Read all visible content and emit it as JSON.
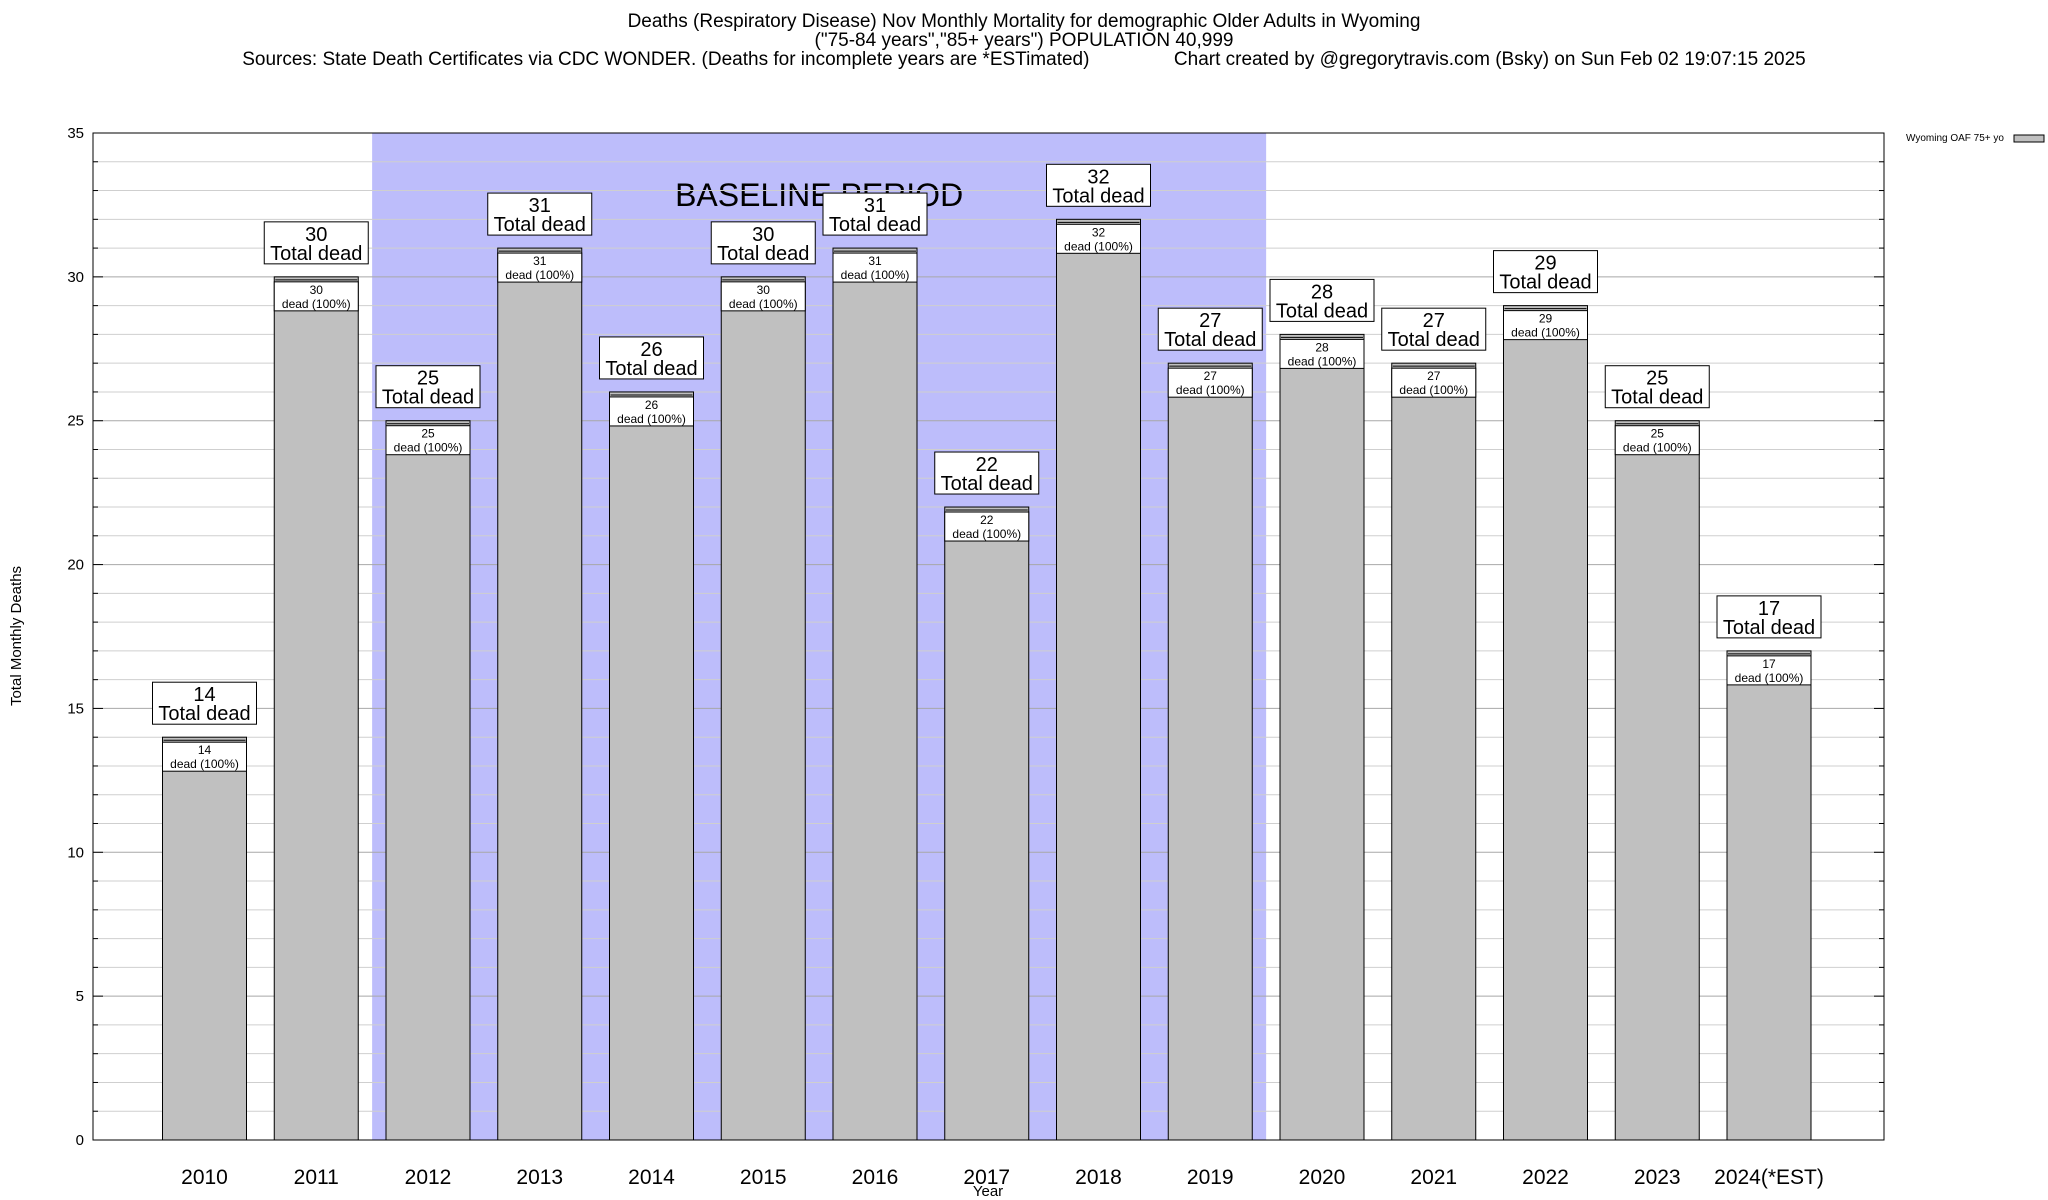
{
  "header": {
    "title_line1": "Deaths (Respiratory Disease) Nov Monthly Mortality for demographic Older Adults in Wyoming",
    "title_line2": "(\"75-84 years\",\"85+ years\") POPULATION 40,999",
    "sources": "Sources: State Death Certificates via CDC WONDER. (Deaths for incomplete years are *ESTimated)",
    "credit": "Chart created by @gregorytravis.com (Bsky) on Sun Feb 02 19:07:15 2025"
  },
  "chart_data": {
    "type": "bar",
    "categories": [
      "2010",
      "2011",
      "2012",
      "2013",
      "2014",
      "2015",
      "2016",
      "2017",
      "2018",
      "2019",
      "2020",
      "2021",
      "2022",
      "2023",
      "2024(*EST)"
    ],
    "series": [
      {
        "name": "Wyoming OAF 75+ yo",
        "values": [
          14,
          30,
          25,
          31,
          26,
          30,
          31,
          22,
          32,
          27,
          28,
          27,
          29,
          25,
          17
        ]
      }
    ],
    "total_labels": [
      "14",
      "30",
      "25",
      "31",
      "26",
      "30",
      "31",
      "22",
      "32",
      "27",
      "28",
      "27",
      "29",
      "25",
      "17"
    ],
    "total_caption": "Total dead",
    "inner_labels": [
      "14",
      "30",
      "25",
      "31",
      "26",
      "30",
      "31",
      "22",
      "32",
      "27",
      "28",
      "27",
      "29",
      "25",
      "17"
    ],
    "inner_caption": "dead (100%)",
    "xlabel": "Year",
    "ylabel": "Total Monthly Deaths",
    "ylim": [
      0,
      35
    ],
    "yticks": [
      0,
      5,
      10,
      15,
      20,
      25,
      30,
      35
    ],
    "baseline": {
      "label": "BASELINE PERIOD",
      "from": "2012",
      "to": "2019",
      "color": "#bdbdfb"
    },
    "bar_color": "#c0c0c0",
    "grid": true,
    "legend_position": "top-right"
  }
}
